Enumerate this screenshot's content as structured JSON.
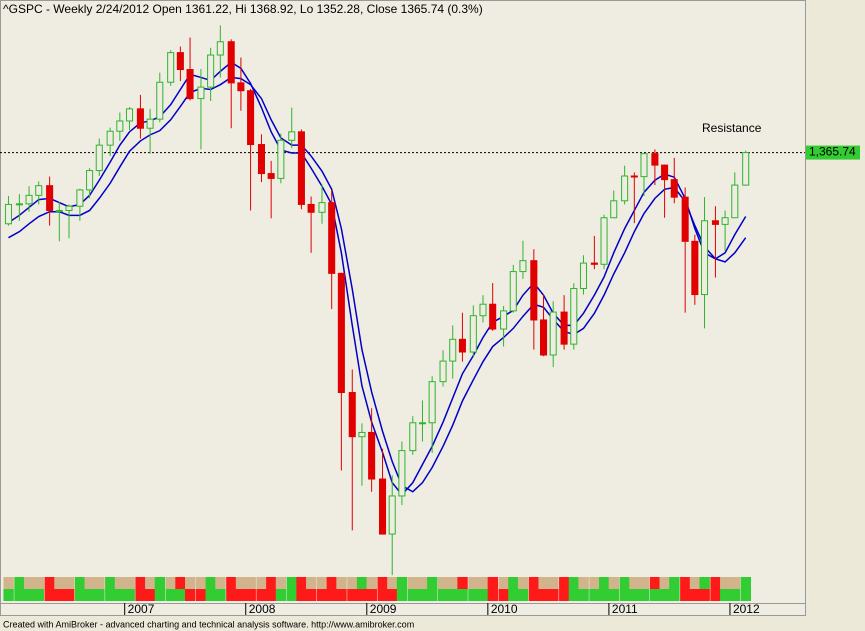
{
  "chart_data": {
    "type": "candlestick",
    "title": "^GSPC - Weekly 2/24/2012 Open 1361.22, Hi 1368.92, Lo 1352.28, Close 1365.74 (0.3%)",
    "annotation": "Resistance",
    "footer": "Created with AmiBroker - advanced charting and technical analysis software. http://www.amibroker.com",
    "x": [
      2006.04,
      2006.13,
      2006.21,
      2006.29,
      2006.38,
      2006.46,
      2006.54,
      2006.63,
      2006.71,
      2006.79,
      2006.88,
      2006.96,
      2007.04,
      2007.13,
      2007.21,
      2007.29,
      2007.38,
      2007.46,
      2007.54,
      2007.63,
      2007.71,
      2007.79,
      2007.88,
      2007.96,
      2008.04,
      2008.13,
      2008.21,
      2008.29,
      2008.38,
      2008.46,
      2008.54,
      2008.63,
      2008.71,
      2008.79,
      2008.88,
      2008.96,
      2009.04,
      2009.13,
      2009.21,
      2009.29,
      2009.38,
      2009.46,
      2009.54,
      2009.63,
      2009.71,
      2009.79,
      2009.88,
      2009.96,
      2010.04,
      2010.13,
      2010.21,
      2010.29,
      2010.38,
      2010.46,
      2010.54,
      2010.63,
      2010.71,
      2010.79,
      2010.88,
      2010.96,
      2011.04,
      2011.13,
      2011.21,
      2011.29,
      2011.38,
      2011.46,
      2011.54,
      2011.63,
      2011.71,
      2011.79,
      2011.88,
      2011.96,
      2012.04,
      2012.13
    ],
    "open": [
      1248,
      1280,
      1281,
      1295,
      1311,
      1270,
      1270,
      1277,
      1304,
      1336,
      1378,
      1401,
      1418,
      1438,
      1406,
      1421,
      1482,
      1531,
      1503,
      1455,
      1474,
      1527,
      1549,
      1481,
      1468,
      1379,
      1331,
      1323,
      1386,
      1400,
      1280,
      1267,
      1283,
      1166,
      969,
      896,
      903,
      826,
      735,
      798,
      873,
      919,
      919,
      987,
      1021,
      1057,
      1036,
      1096,
      1115,
      1074,
      1104,
      1169,
      1187,
      1089,
      1031,
      1102,
      1049,
      1141,
      1183,
      1181,
      1258,
      1286,
      1327,
      1326,
      1364,
      1345,
      1321,
      1292,
      1219,
      1131,
      1253,
      1247,
      1258,
      1312
    ],
    "high": [
      1294,
      1297,
      1310,
      1318,
      1326,
      1284,
      1280,
      1306,
      1340,
      1389,
      1407,
      1432,
      1441,
      1461,
      1438,
      1498,
      1535,
      1541,
      1556,
      1504,
      1539,
      1576,
      1553,
      1523,
      1471,
      1396,
      1352,
      1397,
      1440,
      1404,
      1293,
      1313,
      1304,
      1167,
      1007,
      918,
      943,
      876,
      832,
      888,
      930,
      956,
      996,
      1039,
      1080,
      1101,
      1113,
      1130,
      1150,
      1112,
      1180,
      1220,
      1206,
      1131,
      1120,
      1130,
      1150,
      1196,
      1228,
      1263,
      1303,
      1344,
      1333,
      1364,
      1371,
      1346,
      1357,
      1308,
      1230,
      1292,
      1277,
      1270,
      1333,
      1369
    ],
    "low": [
      1245,
      1253,
      1268,
      1280,
      1245,
      1219,
      1224,
      1253,
      1290,
      1327,
      1360,
      1385,
      1403,
      1389,
      1364,
      1416,
      1476,
      1484,
      1452,
      1371,
      1451,
      1490,
      1406,
      1435,
      1270,
      1317,
      1257,
      1315,
      1373,
      1272,
      1200,
      1248,
      1107,
      840,
      741,
      815,
      805,
      735,
      667,
      783,
      866,
      888,
      869,
      979,
      992,
      1020,
      1029,
      1085,
      1071,
      1045,
      1101,
      1157,
      1040,
      1029,
      1011,
      1040,
      1040,
      1131,
      1173,
      1173,
      1257,
      1280,
      1249,
      1294,
      1312,
      1258,
      1282,
      1101,
      1114,
      1075,
      1159,
      1203,
      1258,
      1311
    ],
    "close": [
      1280,
      1281,
      1295,
      1311,
      1270,
      1270,
      1277,
      1304,
      1336,
      1378,
      1401,
      1418,
      1438,
      1406,
      1421,
      1482,
      1531,
      1503,
      1455,
      1474,
      1527,
      1549,
      1481,
      1468,
      1379,
      1331,
      1323,
      1386,
      1400,
      1280,
      1267,
      1283,
      1166,
      969,
      896,
      903,
      826,
      735,
      798,
      873,
      919,
      919,
      987,
      1021,
      1057,
      1036,
      1096,
      1115,
      1074,
      1104,
      1169,
      1187,
      1089,
      1031,
      1102,
      1049,
      1141,
      1183,
      1181,
      1258,
      1286,
      1327,
      1326,
      1364,
      1345,
      1321,
      1292,
      1219,
      1131,
      1253,
      1247,
      1258,
      1312,
      1365.74
    ],
    "up_color": "#2fb52f",
    "down_color": "#e00000",
    "series": [
      {
        "color": "#0000c8",
        "values": [
          1250,
          1262,
          1275,
          1288,
          1290,
          1283,
          1276,
          1280,
          1295,
          1320,
          1350,
          1378,
          1400,
          1415,
          1418,
          1425,
          1445,
          1470,
          1495,
          1490,
          1485,
          1500,
          1515,
          1505,
          1480,
          1440,
          1400,
          1370,
          1365,
          1365,
          1340,
          1310,
          1280,
          1200,
          1080,
          980,
          920,
          870,
          820,
          800,
          820,
          850,
          880,
          920,
          960,
          1000,
          1030,
          1060,
          1085,
          1095,
          1105,
          1130,
          1150,
          1130,
          1100,
          1080,
          1080,
          1100,
          1130,
          1160,
          1200,
          1240,
          1270,
          1300,
          1320,
          1330,
          1325,
          1290,
          1240,
          1200,
          1190,
          1200,
          1230,
          1260
        ]
      },
      {
        "color": "#0000c8",
        "values": [
          1225,
          1235,
          1248,
          1260,
          1268,
          1268,
          1262,
          1262,
          1270,
          1290,
          1315,
          1342,
          1368,
          1385,
          1395,
          1402,
          1420,
          1442,
          1465,
          1472,
          1470,
          1478,
          1490,
          1488,
          1478,
          1455,
          1420,
          1390,
          1378,
          1378,
          1360,
          1335,
          1305,
          1240,
          1140,
          1040,
          970,
          905,
          855,
          815,
          805,
          820,
          845,
          880,
          915,
          955,
          990,
          1020,
          1045,
          1060,
          1075,
          1095,
          1115,
          1110,
          1090,
          1070,
          1065,
          1075,
          1100,
          1130,
          1165,
          1200,
          1235,
          1265,
          1290,
          1305,
          1308,
          1285,
          1245,
          1210,
          1190,
          1185,
          1200,
          1225
        ]
      }
    ],
    "last_price": {
      "value": 1365.74,
      "label": "1,365.74"
    },
    "last_price_color": "#33cc33",
    "xlim": [
      2005.97,
      2012.62
    ],
    "ylim": [
      664,
      1618
    ],
    "xticks": [
      2007,
      2008,
      2009,
      2010,
      2011,
      2012
    ],
    "strip_top": [
      "#d2b48c",
      "#32cd32",
      "#d2b48c",
      "#d2b48c",
      "#ff1a1a",
      "#d2b48c",
      "#d2b48c",
      "#32cd32",
      "#d2b48c",
      "#d2b48c",
      "#32cd32",
      "#d2b48c",
      "#d2b48c",
      "#ff1a1a",
      "#d2b48c",
      "#32cd32",
      "#d2b48c",
      "#ff1a1a",
      "#d2b48c",
      "#d2b48c",
      "#32cd32",
      "#d2b48c",
      "#ff1a1a",
      "#d2b48c",
      "#d2b48c",
      "#d2b48c",
      "#ff1a1a",
      "#d2b48c",
      "#32cd32",
      "#ff1a1a",
      "#d2b48c",
      "#d2b48c",
      "#ff1a1a",
      "#d2b48c",
      "#d2b48c",
      "#32cd32",
      "#d2b48c",
      "#ff1a1a",
      "#d2b48c",
      "#32cd32",
      "#d2b48c",
      "#d2b48c",
      "#32cd32",
      "#d2b48c",
      "#d2b48c",
      "#ff1a1a",
      "#d2b48c",
      "#d2b48c",
      "#ff1a1a",
      "#d2b48c",
      "#32cd32",
      "#d2b48c",
      "#ff1a1a",
      "#d2b48c",
      "#d2b48c",
      "#ff1a1a",
      "#32cd32",
      "#d2b48c",
      "#d2b48c",
      "#32cd32",
      "#d2b48c",
      "#32cd32",
      "#d2b48c",
      "#d2b48c",
      "#ff1a1a",
      "#d2b48c",
      "#32cd32",
      "#ff1a1a",
      "#d2b48c",
      "#32cd32",
      "#ff1a1a",
      "#d2b48c",
      "#d2b48c",
      "#32cd32"
    ],
    "strip_bottom": [
      "#32cd32",
      "#32cd32",
      "#32cd32",
      "#32cd32",
      "#ff1a1a",
      "#ff1a1a",
      "#ff1a1a",
      "#32cd32",
      "#32cd32",
      "#32cd32",
      "#32cd32",
      "#32cd32",
      "#32cd32",
      "#ff1a1a",
      "#ff1a1a",
      "#32cd32",
      "#32cd32",
      "#32cd32",
      "#ff1a1a",
      "#ff1a1a",
      "#32cd32",
      "#32cd32",
      "#ff1a1a",
      "#ff1a1a",
      "#ff1a1a",
      "#ff1a1a",
      "#ff1a1a",
      "#32cd32",
      "#32cd32",
      "#ff1a1a",
      "#ff1a1a",
      "#ff1a1a",
      "#ff1a1a",
      "#ff1a1a",
      "#ff1a1a",
      "#ff1a1a",
      "#ff1a1a",
      "#ff1a1a",
      "#ff1a1a",
      "#32cd32",
      "#32cd32",
      "#32cd32",
      "#32cd32",
      "#32cd32",
      "#32cd32",
      "#32cd32",
      "#32cd32",
      "#32cd32",
      "#ff1a1a",
      "#ff1a1a",
      "#32cd32",
      "#32cd32",
      "#ff1a1a",
      "#ff1a1a",
      "#ff1a1a",
      "#ff1a1a",
      "#32cd32",
      "#32cd32",
      "#32cd32",
      "#32cd32",
      "#32cd32",
      "#32cd32",
      "#32cd32",
      "#32cd32",
      "#32cd32",
      "#32cd32",
      "#32cd32",
      "#ff1a1a",
      "#ff1a1a",
      "#ff1a1a",
      "#ff1a1a",
      "#32cd32",
      "#32cd32",
      "#32cd32"
    ]
  }
}
